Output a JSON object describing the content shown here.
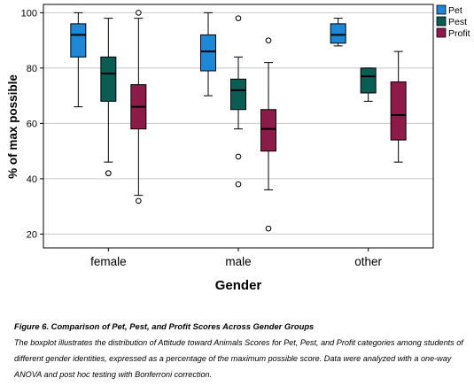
{
  "chart_data": {
    "type": "boxplot",
    "xlabel": "Gender",
    "ylabel": "% of max possible",
    "ylim": [
      15,
      103
    ],
    "yticks": [
      20,
      40,
      60,
      80,
      100
    ],
    "grid": "horizontal",
    "legend_position": "top-right",
    "categories": [
      "female",
      "male",
      "other"
    ],
    "series": [
      {
        "name": "Pet",
        "color": "#1e88d6",
        "boxes": [
          {
            "whisker_low": 66,
            "q1": 84,
            "median": 92,
            "q3": 96,
            "whisker_high": 100,
            "outliers": []
          },
          {
            "whisker_low": 70,
            "q1": 79,
            "median": 86,
            "q3": 92,
            "whisker_high": 100,
            "outliers": []
          },
          {
            "whisker_low": 88,
            "q1": 89,
            "median": 92,
            "q3": 96,
            "whisker_high": 98,
            "outliers": []
          }
        ]
      },
      {
        "name": "Pest",
        "color": "#0b5c52",
        "boxes": [
          {
            "whisker_low": 46,
            "q1": 68,
            "median": 78,
            "q3": 84,
            "whisker_high": 98,
            "outliers": [
              42,
              42
            ]
          },
          {
            "whisker_low": 58,
            "q1": 65,
            "median": 72,
            "q3": 76,
            "whisker_high": 84,
            "outliers": [
              38,
              48,
              98
            ]
          },
          {
            "whisker_low": 68,
            "q1": 71,
            "median": 77,
            "q3": 80,
            "whisker_high": 80,
            "outliers": []
          }
        ]
      },
      {
        "name": "Profit",
        "color": "#8c1b4a",
        "boxes": [
          {
            "whisker_low": 34,
            "q1": 58,
            "median": 66,
            "q3": 74,
            "whisker_high": 98,
            "outliers": [
              32,
              100
            ]
          },
          {
            "whisker_low": 36,
            "q1": 50,
            "median": 58,
            "q3": 65,
            "whisker_high": 82,
            "outliers": [
              22,
              90
            ]
          },
          {
            "whisker_low": 46,
            "q1": 54,
            "median": 63,
            "q3": 75,
            "whisker_high": 86,
            "outliers": []
          }
        ]
      }
    ]
  },
  "caption": {
    "title": "Figure 6. Comparison of Pet, Pest, and Profit Scores Across Gender Groups",
    "body": "The boxplot illustrates the distribution of Attitude toward Animals Scores for Pet, Pest, and Profit categories among students of different gender identities, expressed as a percentage of the maximum possible score. Data were analyzed with a one-way ANOVA and post hoc testing with Bonferroni correction."
  }
}
